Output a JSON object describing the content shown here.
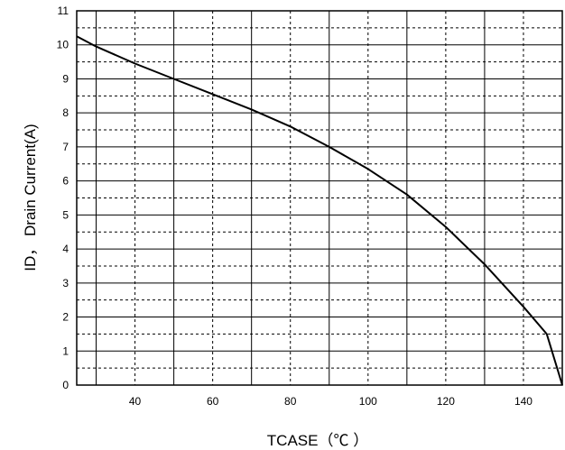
{
  "chart_data": {
    "type": "line",
    "title": "",
    "xlabel": "TCASE（℃ ）",
    "ylabel": "ID， Drain Current(A)",
    "xlim": [
      25,
      150
    ],
    "ylim": [
      0,
      11
    ],
    "x_ticks": [
      40,
      60,
      80,
      100,
      120,
      140
    ],
    "x_tick_labels": [
      "40",
      "60",
      "80",
      "100",
      "120",
      "140"
    ],
    "y_ticks": [
      0,
      1,
      2,
      3,
      4,
      5,
      6,
      7,
      8,
      9,
      10,
      11
    ],
    "y_tick_labels": [
      "0",
      "1",
      "2",
      "3",
      "4",
      "5",
      "6",
      "7",
      "8",
      "9",
      "10",
      "11"
    ],
    "x_major_grid": [
      30,
      50,
      70,
      90,
      110,
      130,
      150
    ],
    "x_minor_grid": [
      40,
      60,
      80,
      100,
      120,
      140
    ],
    "y_major_grid": [
      1,
      2,
      3,
      4,
      5,
      6,
      7,
      8,
      9,
      10
    ],
    "y_minor_grid": [
      0.5,
      1.5,
      2.5,
      3.5,
      4.5,
      5.5,
      6.5,
      7.5,
      8.5,
      9.5,
      10.5
    ],
    "grid": true,
    "colors": {
      "line": "#000000",
      "grid": "#000000",
      "background": "#ffffff"
    },
    "series": [
      {
        "x": [
          25,
          30,
          40,
          50,
          60,
          70,
          80,
          90,
          100,
          110,
          120,
          130,
          140,
          146,
          150
        ],
        "values": [
          10.25,
          9.95,
          9.45,
          9.0,
          8.55,
          8.1,
          7.6,
          7.0,
          6.35,
          5.6,
          4.65,
          3.55,
          2.3,
          1.5,
          0.0
        ]
      }
    ]
  }
}
